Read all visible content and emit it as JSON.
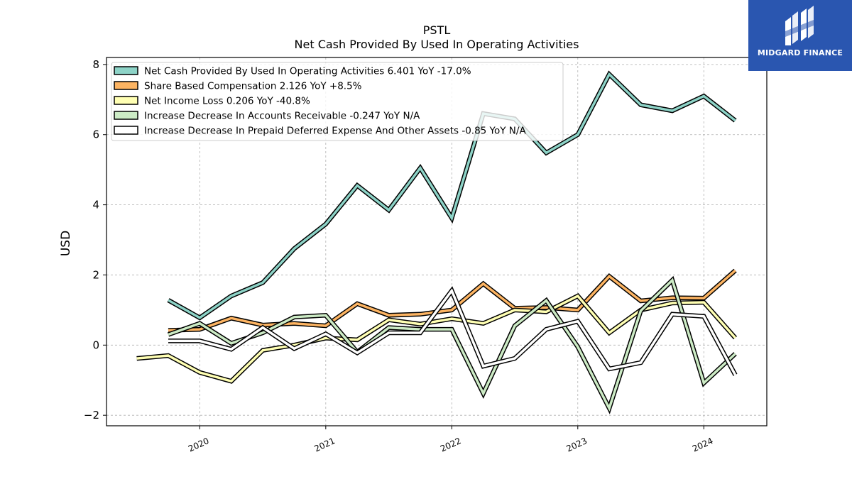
{
  "chart_data": {
    "type": "line",
    "title": "PSTL",
    "subtitle": "Net Cash Provided By Used In Operating Activities",
    "xlabel": "",
    "ylabel": "USD",
    "xlim": [
      2019.26,
      2024.5
    ],
    "ylim": [
      -2.3,
      8.2
    ],
    "x_ticks": [
      2020,
      2021,
      2022,
      2023,
      2024
    ],
    "x_tick_labels": [
      "2020",
      "2021",
      "2022",
      "2023",
      "2024"
    ],
    "y_ticks": [
      -2,
      0,
      2,
      4,
      6,
      8
    ],
    "y_tick_labels": [
      "−2",
      "0",
      "2",
      "4",
      "6",
      "8"
    ],
    "grid": true,
    "legend_position": "top-left",
    "series": [
      {
        "name": "Net Cash Provided By Used In Operating Activities",
        "legend": "Net Cash Provided By Used In Operating Activities  6.401 YoY -17.0%",
        "color": "#8dd3c7",
        "x": [
          2019.75,
          2020.0,
          2020.25,
          2020.5,
          2020.75,
          2021.0,
          2021.25,
          2021.5,
          2021.75,
          2022.0,
          2022.25,
          2022.5,
          2022.75,
          2023.0,
          2023.25,
          2023.5,
          2023.75,
          2024.0,
          2024.25
        ],
        "values": [
          1.28,
          0.78,
          1.4,
          1.78,
          2.75,
          3.45,
          4.55,
          3.85,
          5.05,
          3.62,
          6.6,
          6.45,
          5.48,
          6.0,
          7.72,
          6.85,
          6.68,
          7.1,
          6.401
        ]
      },
      {
        "name": "Share Based Compensation",
        "legend": "Share Based Compensation  2.126 YoY +8.5%",
        "color": "#fdb462",
        "x": [
          2019.75,
          2020.0,
          2020.25,
          2020.5,
          2020.75,
          2021.0,
          2021.25,
          2021.5,
          2021.75,
          2022.0,
          2022.25,
          2022.5,
          2022.75,
          2023.0,
          2023.25,
          2023.5,
          2023.75,
          2024.0,
          2024.25
        ],
        "values": [
          0.42,
          0.45,
          0.77,
          0.57,
          0.62,
          0.55,
          1.18,
          0.85,
          0.88,
          1.0,
          1.75,
          1.05,
          1.07,
          1.0,
          1.96,
          1.26,
          1.35,
          1.34,
          2.126
        ]
      },
      {
        "name": "Net Income Loss",
        "legend": "Net Income Loss  0.206 YoY -40.8%",
        "color": "#ffffb3",
        "x": [
          2019.5,
          2019.75,
          2020.0,
          2020.25,
          2020.5,
          2020.75,
          2021.0,
          2021.25,
          2021.5,
          2021.75,
          2022.0,
          2022.25,
          2022.5,
          2022.75,
          2023.0,
          2023.25,
          2023.5,
          2023.75,
          2024.0,
          2024.25
        ],
        "values": [
          -0.38,
          -0.3,
          -0.78,
          -1.03,
          -0.15,
          0.0,
          0.2,
          0.15,
          0.72,
          0.6,
          0.75,
          0.62,
          1.0,
          0.95,
          1.4,
          0.35,
          1.0,
          1.2,
          1.22,
          0.206
        ]
      },
      {
        "name": "Increase Decrease In Accounts Receivable",
        "legend": "Increase Decrease In Accounts Receivable  -0.247 YoY N/A",
        "color": "#ccebc5",
        "x": [
          2019.75,
          2020.0,
          2020.25,
          2020.5,
          2020.75,
          2021.0,
          2021.25,
          2021.5,
          2021.75,
          2022.0,
          2022.25,
          2022.5,
          2022.75,
          2023.0,
          2023.25,
          2023.5,
          2023.75,
          2024.0,
          2024.25
        ],
        "values": [
          0.3,
          0.62,
          0.05,
          0.35,
          0.8,
          0.85,
          -0.2,
          0.5,
          0.45,
          0.45,
          -1.38,
          0.55,
          1.27,
          -0.05,
          -1.8,
          0.98,
          1.85,
          -1.08,
          -0.247
        ]
      },
      {
        "name": "Increase Decrease In Prepaid Deferred Expense And Other Assets",
        "legend": "Increase Decrease In Prepaid Deferred Expense And Other Assets  -0.85 YoY N/A",
        "color": "#ffffff",
        "x": [
          2019.75,
          2020.0,
          2020.25,
          2020.5,
          2020.75,
          2021.0,
          2021.25,
          2021.5,
          2021.75,
          2022.0,
          2022.25,
          2022.5,
          2022.75,
          2023.0,
          2023.25,
          2023.5,
          2023.75,
          2024.0,
          2024.25
        ],
        "values": [
          0.12,
          0.12,
          -0.12,
          0.5,
          -0.1,
          0.32,
          -0.22,
          0.35,
          0.35,
          1.55,
          -0.6,
          -0.38,
          0.45,
          0.68,
          -0.68,
          -0.5,
          0.88,
          0.82,
          -0.85
        ]
      }
    ]
  },
  "logo": {
    "text": "MIDGARD FINANCE",
    "background": "#2a56b0"
  }
}
